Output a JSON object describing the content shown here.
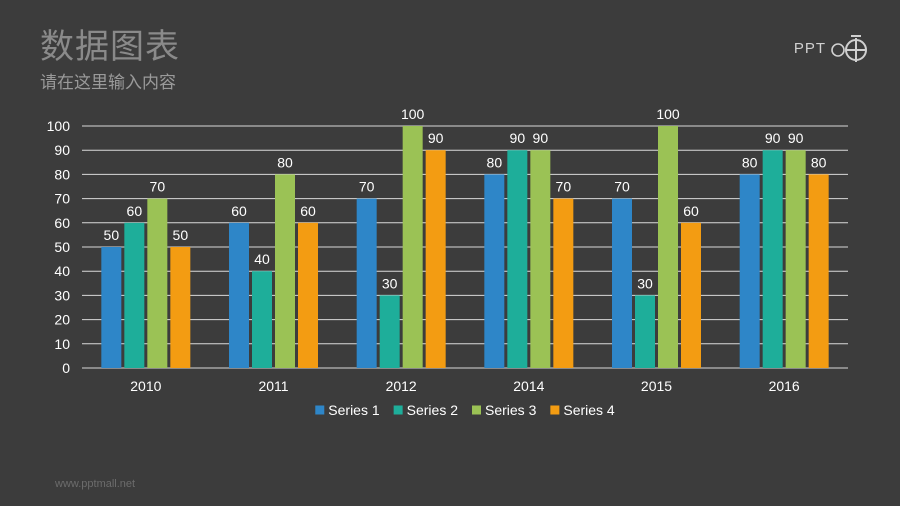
{
  "header": {
    "title": "数据图表",
    "subtitle": "请在这里输入内容"
  },
  "logo": {
    "text": "PPT",
    "icon": "ppt-logo-icon"
  },
  "footer": {
    "url": "www.pptmall.net"
  },
  "colors": {
    "background": "#3c3c3c",
    "gridline": "#d9d9d9",
    "text": "#ffffff",
    "series": [
      "#2e86c8",
      "#1eae9a",
      "#9bc255",
      "#f39c12"
    ]
  },
  "chart_data": {
    "type": "bar",
    "title": "",
    "xlabel": "",
    "ylabel": "",
    "ylim": [
      0,
      100
    ],
    "yticks": [
      0,
      10,
      20,
      30,
      40,
      50,
      60,
      70,
      80,
      90,
      100
    ],
    "grid": true,
    "legend": "bottom",
    "categories": [
      "2010",
      "2011",
      "2012",
      "2014",
      "2015",
      "2016"
    ],
    "series": [
      {
        "name": "Series 1",
        "values": [
          50,
          60,
          70,
          80,
          70,
          80
        ]
      },
      {
        "name": "Series 2",
        "values": [
          60,
          40,
          30,
          90,
          30,
          90
        ]
      },
      {
        "name": "Series 3",
        "values": [
          70,
          80,
          100,
          90,
          100,
          90
        ]
      },
      {
        "name": "Series 4",
        "values": [
          50,
          60,
          90,
          70,
          60,
          80
        ]
      }
    ]
  }
}
